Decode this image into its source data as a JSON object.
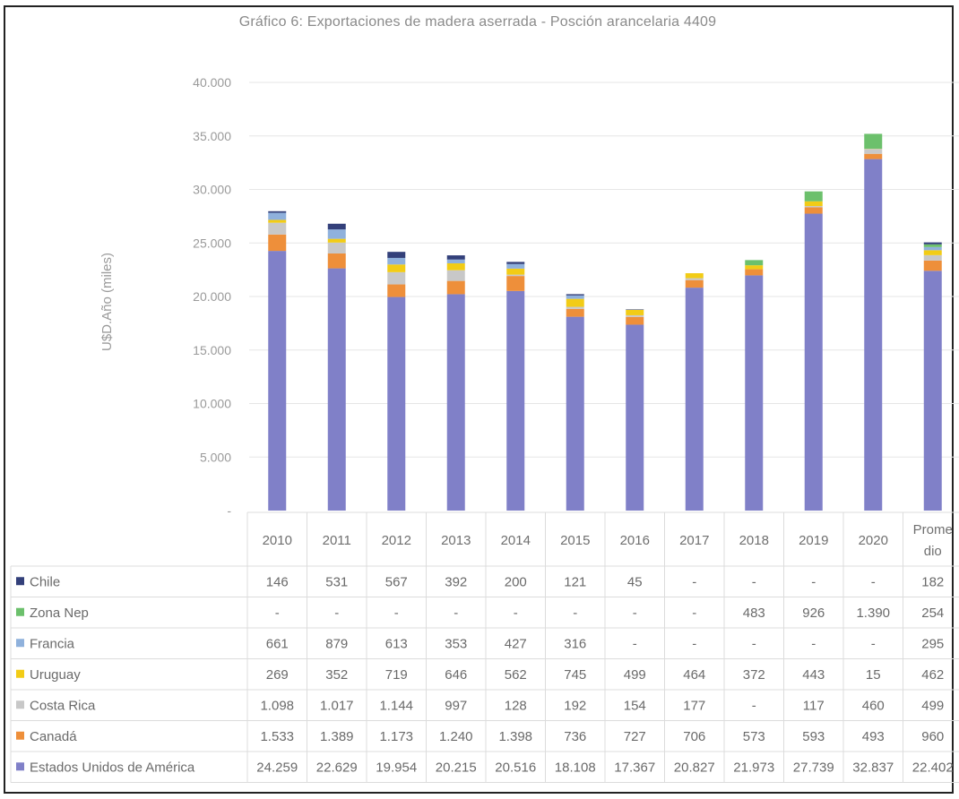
{
  "chart_data": {
    "type": "bar",
    "stacked": true,
    "title": "Gráfico 6: Exportaciones de madera aserrada - Posción arancelaria 4409",
    "ylabel": "U$D.Año (miles)",
    "ylim": [
      0,
      40000
    ],
    "yticks": [
      "-",
      "5.000",
      "10.000",
      "15.000",
      "20.000",
      "25.000",
      "30.000",
      "35.000",
      "40.000"
    ],
    "grid": true,
    "legend": "data-table",
    "categories": [
      "2010",
      "2011",
      "2012",
      "2013",
      "2014",
      "2015",
      "2016",
      "2017",
      "2018",
      "2019",
      "2020",
      "Promedio"
    ],
    "category_lines": [
      [
        "2010"
      ],
      [
        "2011"
      ],
      [
        "2012"
      ],
      [
        "2013"
      ],
      [
        "2014"
      ],
      [
        "2015"
      ],
      [
        "2016"
      ],
      [
        "2017"
      ],
      [
        "2018"
      ],
      [
        "2019"
      ],
      [
        "2020"
      ],
      [
        "Prome",
        "dio"
      ]
    ],
    "series": [
      {
        "name": "Estados Unidos de América",
        "color": "#8080c8",
        "values": [
          24259,
          22629,
          19954,
          20215,
          20516,
          18108,
          17367,
          20827,
          21973,
          27739,
          32837,
          22402
        ],
        "labels": [
          "24.259",
          "22.629",
          "19.954",
          "20.215",
          "20.516",
          "18.108",
          "17.367",
          "20.827",
          "21.973",
          "27.739",
          "32.837",
          "22.402"
        ]
      },
      {
        "name": "Canadá",
        "color": "#ee8f3a",
        "values": [
          1533,
          1389,
          1173,
          1240,
          1398,
          736,
          727,
          706,
          573,
          593,
          493,
          960
        ],
        "labels": [
          "1.533",
          "1.389",
          "1.173",
          "1.240",
          "1.398",
          "736",
          "727",
          "706",
          "573",
          "593",
          "493",
          "960"
        ]
      },
      {
        "name": "Costa Rica",
        "color": "#c8c8c8",
        "values": [
          1098,
          1017,
          1144,
          997,
          128,
          192,
          154,
          177,
          0,
          117,
          460,
          499
        ],
        "labels": [
          "1.098",
          "1.017",
          "1.144",
          "997",
          "128",
          "192",
          "154",
          "177",
          "-",
          "117",
          "460",
          "499"
        ]
      },
      {
        "name": "Uruguay",
        "color": "#f2cc16",
        "values": [
          269,
          352,
          719,
          646,
          562,
          745,
          499,
          464,
          372,
          443,
          15,
          462
        ],
        "labels": [
          "269",
          "352",
          "719",
          "646",
          "562",
          "745",
          "499",
          "464",
          "372",
          "443",
          "15",
          "462"
        ]
      },
      {
        "name": "Francia",
        "color": "#8fb1dc",
        "values": [
          661,
          879,
          613,
          353,
          427,
          316,
          0,
          0,
          0,
          0,
          0,
          295
        ],
        "labels": [
          "661",
          "879",
          "613",
          "353",
          "427",
          "316",
          "-",
          "-",
          "-",
          "-",
          "-",
          "295"
        ]
      },
      {
        "name": "Zona Nep",
        "color": "#6cc06c",
        "values": [
          0,
          0,
          0,
          0,
          0,
          0,
          0,
          0,
          483,
          926,
          1390,
          254
        ],
        "labels": [
          "-",
          "-",
          "-",
          "-",
          "-",
          "-",
          "-",
          "-",
          "483",
          "926",
          "1.390",
          "254"
        ]
      },
      {
        "name": "Chile",
        "color": "#33407a",
        "values": [
          146,
          531,
          567,
          392,
          200,
          121,
          45,
          0,
          0,
          0,
          0,
          182
        ],
        "labels": [
          "146",
          "531",
          "567",
          "392",
          "200",
          "121",
          "45",
          "-",
          "-",
          "-",
          "-",
          "182"
        ]
      }
    ]
  }
}
